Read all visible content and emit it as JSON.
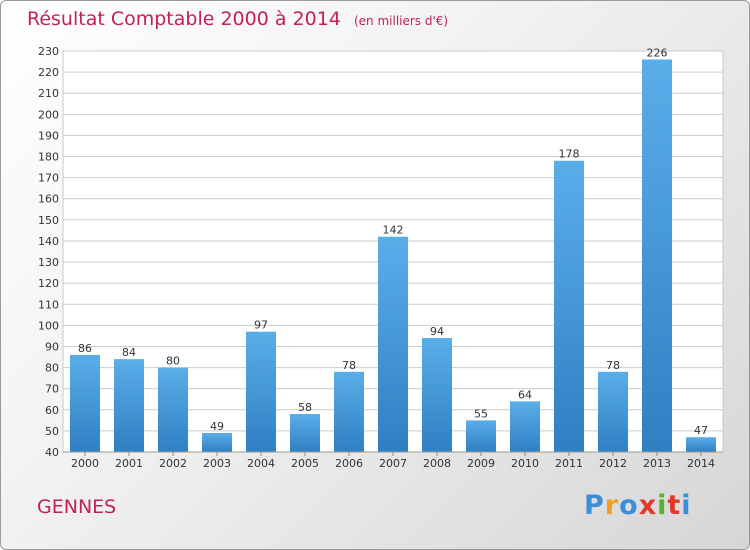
{
  "chart_data": {
    "type": "bar",
    "title": "Résultat Comptable 2000 à 2014",
    "subtitle": "(en milliers d'€)",
    "categories": [
      "2000",
      "2001",
      "2002",
      "2003",
      "2004",
      "2005",
      "2006",
      "2007",
      "2008",
      "2009",
      "2010",
      "2011",
      "2012",
      "2013",
      "2014"
    ],
    "values": [
      86,
      84,
      80,
      49,
      97,
      58,
      78,
      142,
      94,
      55,
      64,
      178,
      78,
      226,
      47
    ],
    "ylim": [
      40,
      230
    ],
    "ytick_step": 10,
    "grid": true,
    "bar_color_top": "#5aaee8",
    "bar_color_bottom": "#2f7fc3"
  },
  "footer": {
    "city": "GENNES"
  },
  "logo": {
    "letters": [
      "P",
      "r",
      "o",
      "x",
      "i",
      "t",
      "i"
    ],
    "colors": [
      "#3a8fd8",
      "#f0a020",
      "#3a8fd8",
      "#e03a2a",
      "#5ab030",
      "#e03a2a",
      "#3a8fd8"
    ]
  }
}
